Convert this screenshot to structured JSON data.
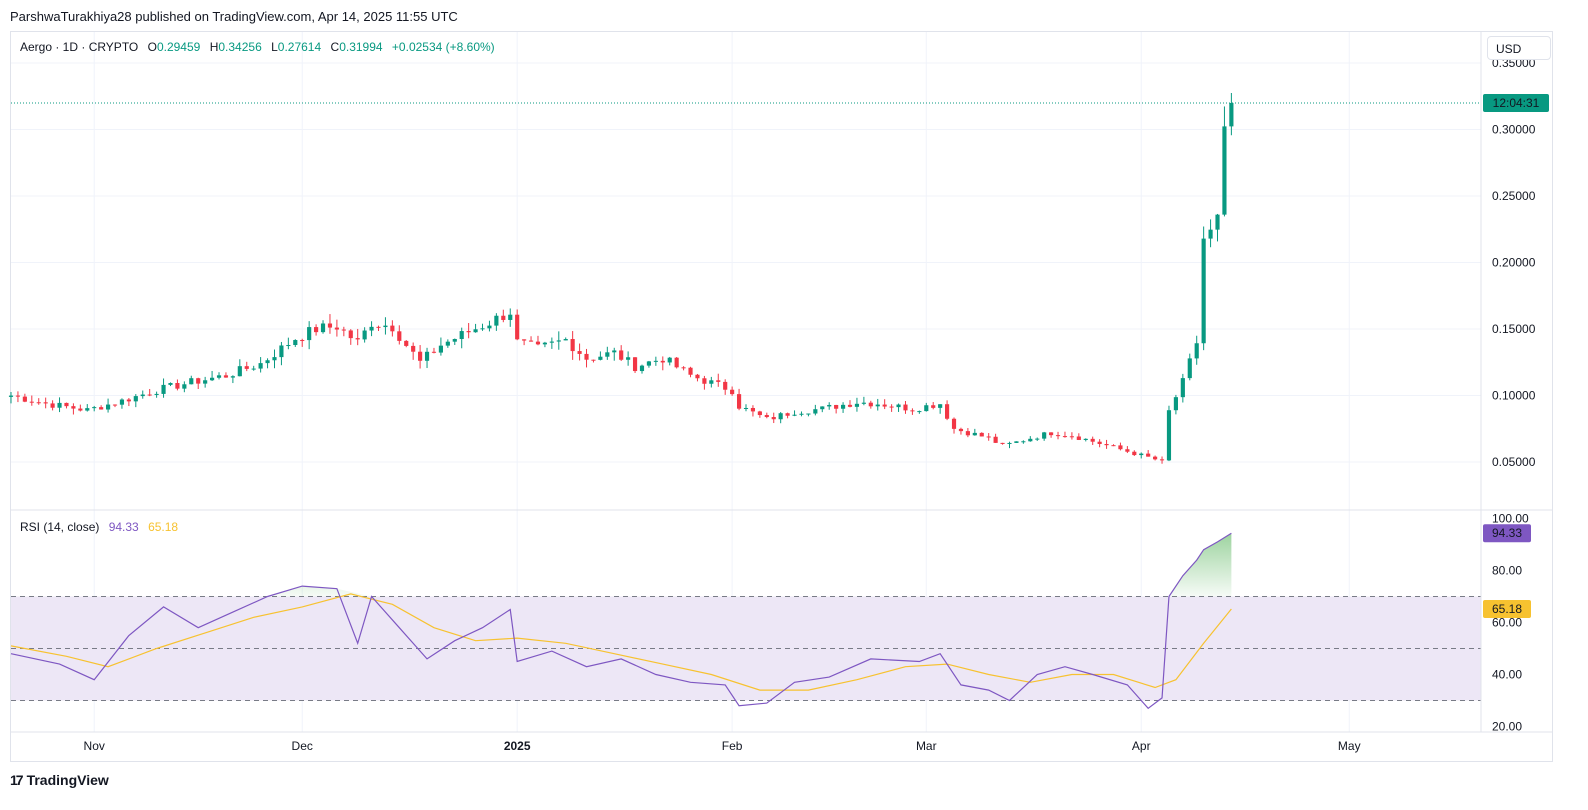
{
  "attribution": "ParshwaTurakhiya28 published on TradingView.com, Apr 14, 2025 11:55 UTC",
  "symbol": {
    "name": "Aergo · 1D · CRYPTO",
    "open_label": "O",
    "open": "0.29459",
    "high_label": "H",
    "high": "0.34256",
    "low_label": "L",
    "low": "0.27614",
    "close_label": "C",
    "close": "0.31994",
    "change": "+0.02534 (+8.60%)"
  },
  "currency": "USD",
  "countdown": "12:04:31",
  "rsi": {
    "label": "RSI (14, close)",
    "value": "94.33",
    "ma_value": "65.18"
  },
  "logo_text": "TradingView",
  "colors": {
    "up": "#089981",
    "down": "#f23645",
    "rsi_line": "#7e57c2",
    "rsi_ma": "#f7c230",
    "rsi_band": "#ede7f6"
  },
  "chart_data": [
    {
      "type": "candlestick",
      "title": "Aergo · 1D · CRYPTO",
      "y_ticks": [
        "0.35000",
        "0.30000",
        "0.25000",
        "0.20000",
        "0.15000",
        "0.10000",
        "0.05000"
      ],
      "x_ticks": [
        "Nov",
        "Dec",
        "2025",
        "Feb",
        "Mar",
        "Apr",
        "May"
      ],
      "ylim": [
        0.02,
        0.36
      ],
      "last_price": 0.31994,
      "anchors": [
        [
          "2024-10-20",
          0.1
        ],
        [
          "2024-10-25",
          0.094
        ],
        [
          "2024-10-31",
          0.089
        ],
        [
          "2024-11-05",
          0.096
        ],
        [
          "2024-11-10",
          0.104
        ],
        [
          "2024-11-15",
          0.11
        ],
        [
          "2024-11-20",
          0.115
        ],
        [
          "2024-11-25",
          0.124
        ],
        [
          "2024-11-30",
          0.143
        ],
        [
          "2024-12-03",
          0.15
        ],
        [
          "2024-12-06",
          0.152
        ],
        [
          "2024-12-09",
          0.14
        ],
        [
          "2024-12-11",
          0.155
        ],
        [
          "2024-12-14",
          0.152
        ],
        [
          "2024-12-16",
          0.138
        ],
        [
          "2024-12-18",
          0.125
        ],
        [
          "2024-12-21",
          0.138
        ],
        [
          "2024-12-25",
          0.148
        ],
        [
          "2024-12-28",
          0.155
        ],
        [
          "2024-12-31",
          0.163
        ],
        [
          "2025-01-01",
          0.14
        ],
        [
          "2025-01-04",
          0.135
        ],
        [
          "2025-01-08",
          0.142
        ],
        [
          "2025-01-11",
          0.128
        ],
        [
          "2025-01-15",
          0.132
        ],
        [
          "2025-01-18",
          0.122
        ],
        [
          "2025-01-22",
          0.128
        ],
        [
          "2025-01-26",
          0.115
        ],
        [
          "2025-02-01",
          0.104
        ],
        [
          "2025-02-02",
          0.092
        ],
        [
          "2025-02-06",
          0.082
        ],
        [
          "2025-02-10",
          0.088
        ],
        [
          "2025-02-14",
          0.09
        ],
        [
          "2025-02-19",
          0.095
        ],
        [
          "2025-02-22",
          0.094
        ],
        [
          "2025-02-27",
          0.09
        ],
        [
          "2025-03-03",
          0.094
        ],
        [
          "2025-03-05",
          0.075
        ],
        [
          "2025-03-10",
          0.068
        ],
        [
          "2025-03-12",
          0.062
        ],
        [
          "2025-03-16",
          0.068
        ],
        [
          "2025-03-19",
          0.072
        ],
        [
          "2025-03-22",
          0.07
        ],
        [
          "2025-03-26",
          0.064
        ],
        [
          "2025-03-30",
          0.058
        ],
        [
          "2025-04-03",
          0.052
        ],
        [
          "2025-04-04",
          0.05
        ],
        [
          "2025-04-05",
          0.088
        ],
        [
          "2025-04-07",
          0.11
        ],
        [
          "2025-04-09",
          0.14
        ],
        [
          "2025-04-10",
          0.218
        ],
        [
          "2025-04-11",
          0.222
        ],
        [
          "2025-04-12",
          0.232
        ],
        [
          "2025-04-13",
          0.295
        ],
        [
          "2025-04-14",
          0.32
        ]
      ]
    },
    {
      "type": "line",
      "title": "RSI (14, close)",
      "y_ticks": [
        "100.00",
        "80.00",
        "60.00",
        "40.00",
        "20.00"
      ],
      "bands": [
        30,
        50,
        70
      ],
      "ylim": [
        20,
        100
      ],
      "series": [
        {
          "values": [
            [
              "2024-10-20",
              48
            ],
            [
              "2024-10-27",
              44
            ],
            [
              "2024-11-01",
              38
            ],
            [
              "2024-11-06",
              55
            ],
            [
              "2024-11-11",
              66
            ],
            [
              "2024-11-16",
              58
            ],
            [
              "2024-11-21",
              64
            ],
            [
              "2024-11-26",
              70
            ],
            [
              "2024-12-01",
              74
            ],
            [
              "2024-12-06",
              73
            ],
            [
              "2024-12-09",
              52
            ],
            [
              "2024-12-11",
              70
            ],
            [
              "2024-12-15",
              58
            ],
            [
              "2024-12-19",
              46
            ],
            [
              "2024-12-23",
              53
            ],
            [
              "2024-12-27",
              58
            ],
            [
              "2024-12-31",
              65
            ],
            [
              "2025-01-01",
              45
            ],
            [
              "2025-01-06",
              49
            ],
            [
              "2025-01-11",
              43
            ],
            [
              "2025-01-16",
              46
            ],
            [
              "2025-01-21",
              40
            ],
            [
              "2025-01-26",
              37
            ],
            [
              "2025-01-31",
              36
            ],
            [
              "2025-02-02",
              28
            ],
            [
              "2025-02-06",
              29
            ],
            [
              "2025-02-10",
              37
            ],
            [
              "2025-02-15",
              39
            ],
            [
              "2025-02-21",
              46
            ],
            [
              "2025-02-28",
              45
            ],
            [
              "2025-03-03",
              48
            ],
            [
              "2025-03-06",
              36
            ],
            [
              "2025-03-10",
              34
            ],
            [
              "2025-03-13",
              30
            ],
            [
              "2025-03-17",
              40
            ],
            [
              "2025-03-21",
              43
            ],
            [
              "2025-03-25",
              40
            ],
            [
              "2025-03-30",
              36
            ],
            [
              "2025-04-02",
              27
            ],
            [
              "2025-04-04",
              31
            ],
            [
              "2025-04-05",
              70
            ],
            [
              "2025-04-07",
              78
            ],
            [
              "2025-04-09",
              84
            ],
            [
              "2025-04-10",
              88
            ],
            [
              "2025-04-12",
              91
            ],
            [
              "2025-04-14",
              94.33
            ]
          ]
        },
        {
          "values": [
            [
              "2024-10-20",
              51
            ],
            [
              "2024-10-28",
              47
            ],
            [
              "2024-11-03",
              43
            ],
            [
              "2024-11-10",
              50
            ],
            [
              "2024-11-17",
              56
            ],
            [
              "2024-11-24",
              62
            ],
            [
              "2024-12-01",
              66
            ],
            [
              "2024-12-08",
              71
            ],
            [
              "2024-12-14",
              67
            ],
            [
              "2024-12-20",
              58
            ],
            [
              "2024-12-26",
              53
            ],
            [
              "2025-01-01",
              54
            ],
            [
              "2025-01-08",
              52
            ],
            [
              "2025-01-15",
              48
            ],
            [
              "2025-01-22",
              44
            ],
            [
              "2025-01-29",
              40
            ],
            [
              "2025-02-05",
              34
            ],
            [
              "2025-02-12",
              34
            ],
            [
              "2025-02-19",
              38
            ],
            [
              "2025-02-26",
              43
            ],
            [
              "2025-03-04",
              44
            ],
            [
              "2025-03-10",
              40
            ],
            [
              "2025-03-16",
              37
            ],
            [
              "2025-03-22",
              40
            ],
            [
              "2025-03-28",
              40
            ],
            [
              "2025-04-03",
              35
            ],
            [
              "2025-04-06",
              38
            ],
            [
              "2025-04-10",
              52
            ],
            [
              "2025-04-14",
              65.18
            ]
          ]
        }
      ]
    }
  ]
}
